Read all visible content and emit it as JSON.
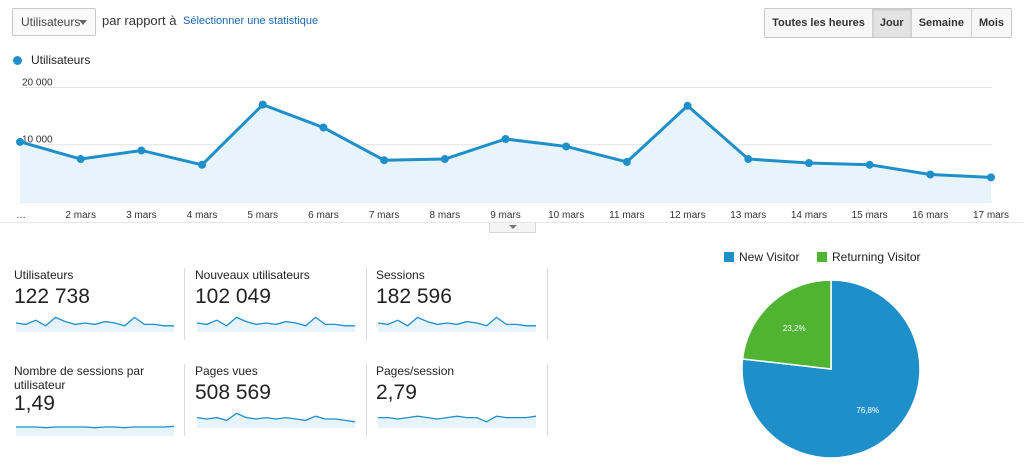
{
  "controls": {
    "metric_select": "Utilisateurs",
    "compare_label": "par rapport à",
    "compare_link": "Sélectionner une statistique",
    "granularity": [
      "Toutes les heures",
      "Jour",
      "Semaine",
      "Mois"
    ],
    "active_granularity": "Jour"
  },
  "legend": {
    "label": "Utilisateurs",
    "color": "#1f8fc9"
  },
  "chart_data": {
    "type": "area",
    "title": "",
    "xlabel": "",
    "ylabel": "",
    "y_tick_labels": [
      "20 000",
      "10 000"
    ],
    "y_ticks": [
      20000,
      10000
    ],
    "ylim": [
      0,
      22000
    ],
    "categories": [
      "…",
      "2 mars",
      "3 mars",
      "4 mars",
      "5 mars",
      "6 mars",
      "7 mars",
      "8 mars",
      "9 mars",
      "10 mars",
      "11 mars",
      "12 mars",
      "13 mars",
      "14 mars",
      "15 mars",
      "16 mars",
      "17 mars"
    ],
    "series": [
      {
        "name": "Utilisateurs",
        "values": [
          10500,
          7500,
          9000,
          6500,
          17000,
          13000,
          7300,
          7500,
          11000,
          9700,
          7000,
          16800,
          7500,
          6800,
          6500,
          4800,
          4300
        ]
      }
    ],
    "grid": true,
    "color": "#1f8fc9"
  },
  "metrics": [
    {
      "label": "Utilisateurs",
      "value": "122 738",
      "spark": [
        5,
        4,
        7,
        3,
        9,
        6,
        4,
        5,
        4,
        6,
        5,
        3,
        9,
        4,
        4,
        3,
        3
      ]
    },
    {
      "label": "Nouveaux utilisateurs",
      "value": "102 049",
      "spark": [
        5,
        4,
        7,
        3,
        9,
        6,
        4,
        5,
        4,
        6,
        5,
        3,
        9,
        4,
        4,
        3,
        3
      ]
    },
    {
      "label": "Sessions",
      "value": "182 596",
      "spark": [
        5,
        4,
        7,
        3,
        9,
        6,
        4,
        5,
        4,
        6,
        5,
        3,
        9,
        4,
        4,
        3,
        3
      ]
    },
    {
      "label": "Nombre de sessions par utilisateur",
      "value": "1,49",
      "spark": [
        5,
        5,
        5,
        4.5,
        5,
        5,
        5,
        5,
        4.5,
        5,
        5,
        4.5,
        5,
        5,
        5,
        5,
        5.5
      ]
    },
    {
      "label": "Pages vues",
      "value": "508 569",
      "spark": [
        6,
        5,
        6,
        4,
        9,
        6,
        5,
        6,
        5,
        6,
        5,
        4,
        7,
        5,
        5,
        4,
        3
      ]
    },
    {
      "label": "Pages/session",
      "value": "2,79",
      "spark": [
        6,
        6,
        5,
        6,
        7,
        6,
        5,
        6,
        7,
        6,
        6,
        3,
        7,
        6,
        6,
        6,
        7
      ]
    }
  ],
  "pie": {
    "legend": [
      {
        "label": "New Visitor",
        "color": "#1f8fc9"
      },
      {
        "label": "Returning Visitor",
        "color": "#50b432"
      }
    ],
    "slices": [
      {
        "label": "New Visitor",
        "value": 76.8,
        "text": "76,8%",
        "color": "#1f8fc9"
      },
      {
        "label": "Returning Visitor",
        "value": 23.2,
        "text": "23,2%",
        "color": "#50b432"
      }
    ]
  }
}
